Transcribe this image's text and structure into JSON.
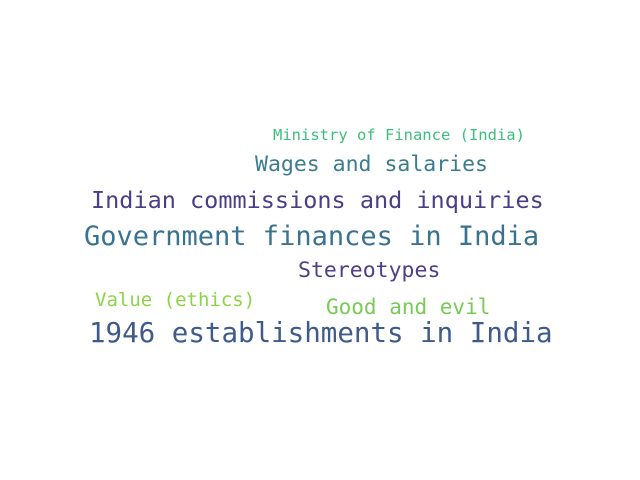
{
  "word_cloud": {
    "words": [
      {
        "text": "Ministry of Finance (India)",
        "color": "#3bbf7d"
      },
      {
        "text": "Wages and salaries",
        "color": "#3b7c8e"
      },
      {
        "text": "Indian commissions and inquiries",
        "color": "#4b3e88"
      },
      {
        "text": "Government finances in India",
        "color": "#3a7390"
      },
      {
        "text": "Stereotypes",
        "color": "#4f3f88"
      },
      {
        "text": "Value (ethics)",
        "color": "#8bd44a"
      },
      {
        "text": "Good and evil",
        "color": "#76cc56"
      },
      {
        "text": "1946 establishments in India",
        "color": "#3f5b8c"
      }
    ]
  }
}
